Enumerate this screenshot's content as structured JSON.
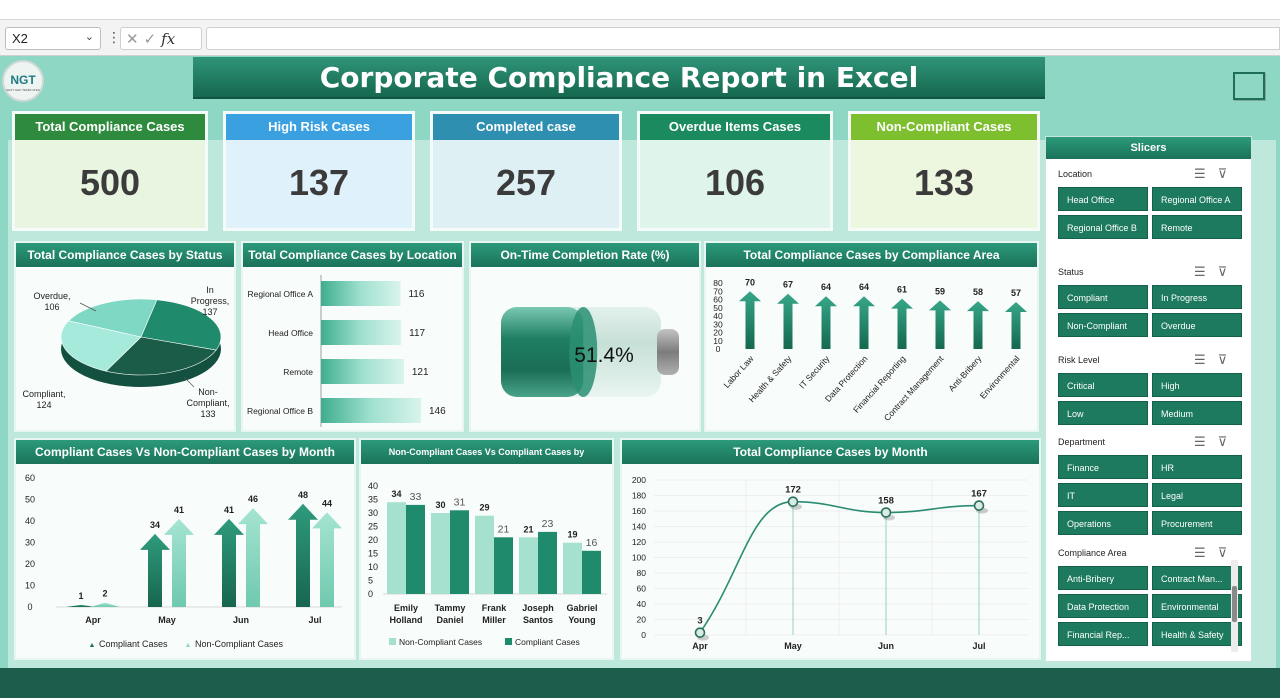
{
  "formula_bar": {
    "name_box": "X2",
    "fx_label": "fx",
    "formula_value": ""
  },
  "logo": {
    "text": "NGT",
    "subtext": "NEXT GEN TEMPLATES"
  },
  "title": "Corporate Compliance Report in Excel",
  "kpis": [
    {
      "label": "Total Compliance Cases",
      "value": "500"
    },
    {
      "label": "High Risk Cases",
      "value": "137"
    },
    {
      "label": "Completed case",
      "value": "257"
    },
    {
      "label": "Overdue Items Cases",
      "value": "106"
    },
    {
      "label": "Non-Compliant Cases",
      "value": "133"
    }
  ],
  "panels": {
    "status": "Total Compliance Cases by Status",
    "location": "Total Compliance Cases by Location",
    "ontime": "On-Time Completion Rate (%)",
    "area": "Total Compliance Cases by Compliance Area",
    "month_compare": "Compliant Cases Vs Non-Compliant Cases by Month",
    "person": "Non-Compliant Cases Vs Compliant Cases by",
    "month_total": "Total Compliance Cases by Month"
  },
  "chart_data": [
    {
      "id": "status",
      "type": "pie",
      "categories": [
        "Overdue",
        "In Progress",
        "Non-Compliant",
        "Compliant"
      ],
      "values": [
        106,
        137,
        133,
        124
      ],
      "colors": [
        "#7fd8c3",
        "#1f8a6c",
        "#1a5c48",
        "#a6eadb"
      ]
    },
    {
      "id": "location",
      "type": "bar",
      "orientation": "horizontal",
      "categories": [
        "Regional Office A",
        "Head Office",
        "Remote",
        "Regional Office B"
      ],
      "values": [
        116,
        117,
        121,
        146
      ]
    },
    {
      "id": "ontime",
      "type": "gauge",
      "value": 51.4,
      "label": "51.4%"
    },
    {
      "id": "area",
      "type": "bar",
      "categories": [
        "Labor Law",
        "Health & Safety",
        "IT Security",
        "Data Protection",
        "Financial Reporting",
        "Contract Management",
        "Anti-Bribery",
        "Environmental"
      ],
      "values": [
        70,
        67,
        64,
        64,
        61,
        59,
        58,
        57
      ],
      "ylim": [
        0,
        80
      ],
      "yticks": [
        0,
        10,
        20,
        30,
        40,
        50,
        60,
        70,
        80
      ]
    },
    {
      "id": "month_compare",
      "type": "bar",
      "categories": [
        "Apr",
        "May",
        "Jun",
        "Jul"
      ],
      "series": [
        {
          "name": "Compliant Cases",
          "values": [
            1,
            34,
            41,
            48
          ]
        },
        {
          "name": "Non-Compliant Cases",
          "values": [
            2,
            41,
            46,
            44
          ]
        }
      ],
      "ylim": [
        0,
        60
      ],
      "yticks": [
        0,
        10,
        20,
        30,
        40,
        50,
        60
      ]
    },
    {
      "id": "person",
      "type": "bar",
      "categories": [
        "Emily Holland",
        "Tammy Daniel",
        "Frank Miller",
        "Joseph Santos",
        "Gabriel Young"
      ],
      "series": [
        {
          "name": "Non-Compliant Cases",
          "values": [
            34,
            30,
            29,
            21,
            19
          ]
        },
        {
          "name": "Compliant Cases",
          "values": [
            33,
            31,
            21,
            23,
            16
          ]
        }
      ],
      "ylim": [
        0,
        40
      ],
      "yticks": [
        0,
        5,
        10,
        15,
        20,
        25,
        30,
        35,
        40
      ]
    },
    {
      "id": "month_total",
      "type": "line",
      "categories": [
        "Apr",
        "May",
        "Jun",
        "Jul"
      ],
      "values": [
        3,
        172,
        158,
        167
      ],
      "ylim": [
        0,
        200
      ],
      "yticks": [
        0,
        20,
        40,
        60,
        80,
        100,
        120,
        140,
        160,
        180,
        200
      ]
    }
  ],
  "slicers": {
    "title": "Slicers",
    "sections": [
      {
        "title": "Location",
        "items": [
          "Head Office",
          "Regional Office A",
          "Regional Office B",
          "Remote"
        ]
      },
      {
        "title": "Status",
        "items": [
          "Compliant",
          "In Progress",
          "Non-Compliant",
          "Overdue"
        ]
      },
      {
        "title": "Risk Level",
        "items": [
          "Critical",
          "High",
          "Low",
          "Medium"
        ]
      },
      {
        "title": "Department",
        "items": [
          "Finance",
          "HR",
          "IT",
          "Legal",
          "Operations",
          "Procurement"
        ]
      },
      {
        "title": "Compliance Area",
        "items": [
          "Anti-Bribery",
          "Contract Man...",
          "Data Protection",
          "Environmental",
          "Financial Rep...",
          "Health & Safety"
        ]
      }
    ]
  },
  "colors": {
    "dark_green": "#1a7259",
    "teal_light": "#a6eadb",
    "kpi_heads": [
      "#2e8b3e",
      "#3aa0df",
      "#2f8fb1",
      "#1c8a5f",
      "#7dbf2f"
    ],
    "kpi_bodies": [
      "#e8f5e0",
      "#dff1fb",
      "#dff0f4",
      "#dff4ea",
      "#edf6de"
    ]
  }
}
